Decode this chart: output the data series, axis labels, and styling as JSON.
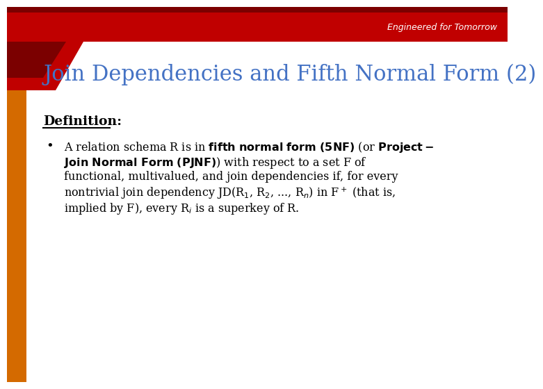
{
  "title": "Join Dependencies and Fifth Normal Form (2)",
  "title_color": "#4472C4",
  "bg_color": "#FFFFFF",
  "header_red": "#C00000",
  "header_dark_red": "#7B0000",
  "left_bar_color": "#D46A00",
  "engineered_text": "Engineered for Tomorrow",
  "definition_label": "Definition:",
  "font_size_title": 22,
  "font_size_body": 11.5,
  "font_size_header": 9,
  "body_lines": [
    "A relation schema R is in $\\mathbf{fifth\\ normal\\ form\\ (5NF)}$ (or $\\mathbf{Project-}$",
    "$\\mathbf{Join\\ Normal\\ Form\\ (PJNF)}$) with respect to a set F of",
    "functional, multivalued, and join dependencies if, for every",
    "nontrivial join dependency JD(R$_1$, R$_2$, ..., R$_n$) in F$^+$ (that is,",
    "implied by F), every R$_i$ is a superkey of R."
  ]
}
